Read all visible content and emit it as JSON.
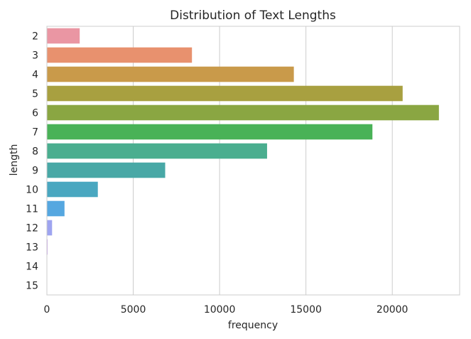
{
  "chart_data": {
    "type": "bar",
    "orientation": "horizontal",
    "title": "Distribution of Text Lengths",
    "xlabel": "frequency",
    "ylabel": "length",
    "categories": [
      "2",
      "3",
      "4",
      "5",
      "6",
      "7",
      "8",
      "9",
      "10",
      "11",
      "12",
      "13",
      "14",
      "15"
    ],
    "values": [
      1900,
      8400,
      14300,
      20600,
      22700,
      18850,
      12750,
      6850,
      2950,
      1020,
      300,
      40,
      10,
      5
    ],
    "xlim": [
      0,
      23900
    ],
    "xticks": [
      0,
      5000,
      10000,
      15000,
      20000
    ],
    "grid": "vertical",
    "colors": [
      "#ea96a3",
      "#e8916e",
      "#c99a4a",
      "#a8a040",
      "#8aa642",
      "#49b257",
      "#4aae8f",
      "#48a8a6",
      "#49a7c0",
      "#55a7e0",
      "#9ea4f0",
      "#c89cf0",
      "#e98fe0",
      "#ee93c0"
    ]
  }
}
